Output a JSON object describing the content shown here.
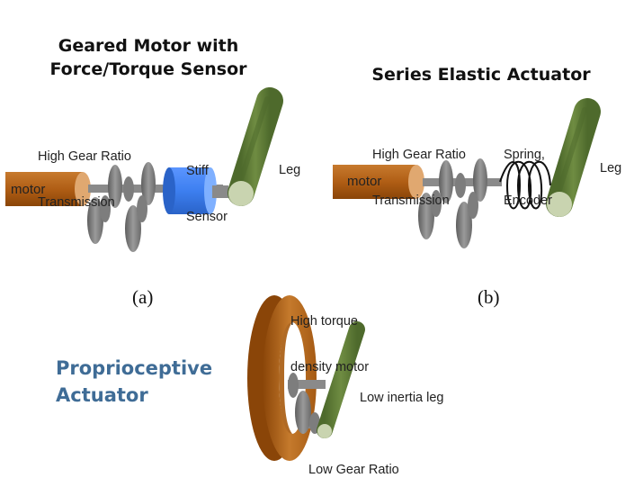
{
  "panel_a": {
    "title_line1": "Geared Motor with",
    "title_line2": "Force/Torque Sensor",
    "transmission_label_line1": "High Gear Ratio",
    "transmission_label_line2": "Transmission",
    "sensor_label_line1": "Stiff",
    "sensor_label_line2": "Sensor",
    "motor_label": "motor",
    "leg_label": "Leg",
    "caption": "(a)"
  },
  "panel_b": {
    "title": "Series Elastic Actuator",
    "transmission_label_line1": "High Gear Ratio",
    "transmission_label_line2": "Transmission",
    "spring_label_line1": "Spring,",
    "spring_label_line2": "Encoder",
    "motor_label": "motor",
    "leg_label": "Leg",
    "caption": "(b)"
  },
  "panel_c": {
    "title_line1": "Proprioceptive",
    "title_line2": "Actuator",
    "motor_label_line1": "High torque",
    "motor_label_line2": "density motor",
    "leg_label": "Low inertia leg",
    "transmission_label": "Low Gear Ratio"
  },
  "colors": {
    "motor": "#b8651a",
    "motor_face": "#e0a870",
    "gear": "#707070",
    "sensor": "#3d7ff0",
    "leg": "#607a38",
    "leg_end": "#c9d4b0",
    "title_blue": "#3f6c96"
  }
}
